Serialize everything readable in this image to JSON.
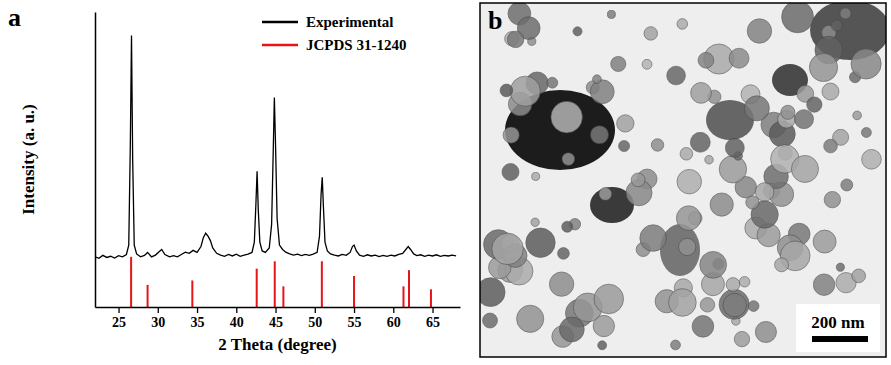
{
  "figure": {
    "panels": [
      {
        "label": "a"
      },
      {
        "label": "b",
        "scale_bar": "200 nm"
      }
    ]
  },
  "chart_data": {
    "type": "line",
    "x_label": "2 Theta (degree)",
    "y_label": "Intensity (a. u.)",
    "xlim": [
      22,
      68.5
    ],
    "xticks": [
      25,
      30,
      35,
      40,
      45,
      50,
      55,
      60,
      65
    ],
    "ylim": [
      0,
      100
    ],
    "tick_labels": "x",
    "grid": false,
    "legend": "top-right",
    "series": [
      {
        "name": "Experimental",
        "color": "#000000",
        "type": "line",
        "x": [
          22,
          22.5,
          23,
          23.5,
          24,
          24.5,
          25,
          25.5,
          26,
          26.3,
          26.5,
          26.65,
          26.8,
          27,
          27.3,
          27.8,
          28.3,
          28.7,
          29.2,
          29.7,
          30.2,
          30.5,
          30.9,
          31.5,
          32,
          32.5,
          33,
          33.5,
          34,
          34.5,
          35,
          35.5,
          35.8,
          36.1,
          36.4,
          36.7,
          37,
          37.5,
          38,
          38.5,
          39,
          39.5,
          40,
          40.5,
          41,
          41.5,
          42,
          42.3,
          42.5,
          42.65,
          42.8,
          43,
          43.3,
          43.7,
          44.2,
          44.5,
          44.7,
          44.85,
          45,
          45.2,
          45.5,
          45.9,
          46.3,
          46.8,
          47.3,
          47.8,
          48.3,
          48.8,
          49.3,
          49.8,
          50.3,
          50.6,
          50.8,
          50.95,
          51.1,
          51.3,
          51.6,
          52,
          52.5,
          53,
          53.5,
          54,
          54.5,
          54.8,
          55,
          55.3,
          55.7,
          56.2,
          56.7,
          57.2,
          57.7,
          58.2,
          58.7,
          59.2,
          59.7,
          60.2,
          60.7,
          61.2,
          61.6,
          61.9,
          62.2,
          62.6,
          63,
          63.5,
          64,
          64.5,
          65,
          65.5,
          66,
          66.5,
          67,
          67.5,
          68
        ],
        "values": [
          17,
          16.5,
          17.5,
          16.8,
          17.2,
          16.6,
          17.4,
          17,
          17.8,
          21,
          55,
          92,
          50,
          21,
          18,
          17,
          17.5,
          18.5,
          17,
          17.6,
          18.8,
          19.5,
          17.8,
          17,
          17.4,
          17,
          17.8,
          18.6,
          18.2,
          19.2,
          18.5,
          20.5,
          23.5,
          25,
          24,
          22.5,
          20,
          18.2,
          17.6,
          17.2,
          17.8,
          17.3,
          17.9,
          17.2,
          17.6,
          17.9,
          18.5,
          22,
          35,
          46,
          33,
          22,
          19,
          18.5,
          20,
          28,
          52,
          71,
          55,
          30,
          21,
          19.5,
          18.6,
          18,
          17.6,
          17.9,
          17.4,
          17.8,
          17.5,
          17.9,
          18.5,
          24,
          38,
          44,
          34,
          22,
          19,
          18,
          17.6,
          17.3,
          17.8,
          17.5,
          18.5,
          20.5,
          21,
          19,
          17.6,
          17.2,
          17.7,
          17.3,
          17.6,
          17.1,
          17.5,
          17.2,
          17.6,
          17.3,
          17.8,
          18.2,
          19.5,
          20.5,
          19.5,
          18,
          17.4,
          17.7,
          17.2,
          17.6,
          17.3,
          17.7,
          17.2,
          17.5,
          17.3,
          17.6,
          17.3
        ]
      },
      {
        "name": "JCPDS 31-1240",
        "color": "#e8141b",
        "type": "stick",
        "x": [
          26.6,
          28.7,
          34.4,
          42.6,
          44.9,
          46.0,
          50.9,
          55.0,
          61.3,
          62.0,
          64.8
        ],
        "values": [
          17,
          7.5,
          9,
          13,
          15.5,
          7,
          15.5,
          10.5,
          7,
          12.5,
          6
        ]
      }
    ]
  }
}
